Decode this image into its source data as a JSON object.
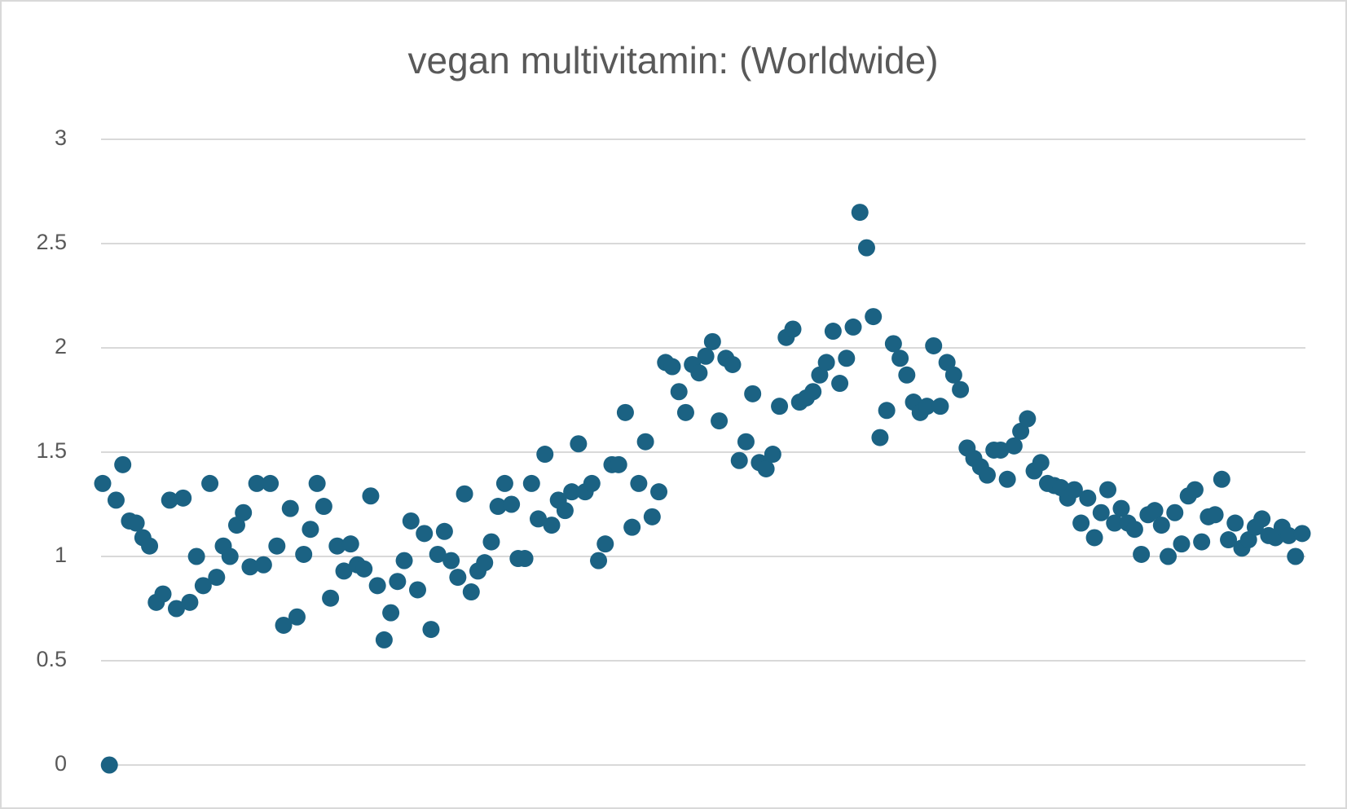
{
  "chart_data": {
    "type": "scatter",
    "title": "vegan multivitamin: (Worldwide)",
    "values": [
      1.35,
      0,
      1.27,
      1.44,
      1.17,
      1.16,
      1.09,
      1.05,
      0.78,
      0.82,
      1.27,
      0.75,
      1.28,
      0.78,
      1.0,
      0.86,
      1.35,
      0.9,
      1.05,
      1.0,
      1.15,
      1.21,
      0.95,
      1.35,
      0.96,
      1.35,
      1.05,
      0.67,
      1.23,
      0.71,
      1.01,
      1.13,
      1.35,
      1.24,
      0.8,
      1.05,
      0.93,
      1.06,
      0.96,
      0.94,
      1.29,
      0.86,
      0.6,
      0.73,
      0.88,
      0.98,
      1.17,
      0.84,
      1.11,
      0.65,
      1.01,
      1.12,
      0.98,
      0.9,
      1.3,
      0.83,
      0.93,
      0.97,
      1.07,
      1.24,
      1.35,
      1.25,
      0.99,
      0.99,
      1.35,
      1.18,
      1.49,
      1.15,
      1.27,
      1.22,
      1.31,
      1.54,
      1.31,
      1.35,
      0.98,
      1.06,
      1.44,
      1.44,
      1.69,
      1.14,
      1.35,
      1.55,
      1.19,
      1.31,
      1.93,
      1.91,
      1.79,
      1.69,
      1.92,
      1.88,
      1.96,
      2.03,
      1.65,
      1.95,
      1.92,
      1.46,
      1.55,
      1.78,
      1.45,
      1.42,
      1.49,
      1.72,
      2.05,
      2.09,
      1.74,
      1.76,
      1.79,
      1.87,
      1.93,
      2.08,
      1.83,
      1.95,
      2.1,
      2.65,
      2.48,
      2.15,
      1.57,
      1.7,
      2.02,
      1.95,
      1.87,
      1.74,
      1.69,
      1.72,
      2.01,
      1.72,
      1.93,
      1.87,
      1.8,
      1.52,
      1.47,
      1.43,
      1.39,
      1.51,
      1.51,
      1.37,
      1.53,
      1.6,
      1.66,
      1.41,
      1.45,
      1.35,
      1.34,
      1.33,
      1.28,
      1.32,
      1.16,
      1.28,
      1.09,
      1.21,
      1.32,
      1.16,
      1.23,
      1.16,
      1.13,
      1.01,
      1.2,
      1.22,
      1.15,
      1.0,
      1.21,
      1.06,
      1.29,
      1.32,
      1.07,
      1.19,
      1.2,
      1.37,
      1.08,
      1.16,
      1.04,
      1.08,
      1.14,
      1.18,
      1.1,
      1.09,
      1.14,
      1.1,
      1.0,
      1.11
    ],
    "color": "#1b6283",
    "ylim": [
      0,
      3
    ],
    "yticks": [
      0,
      0.5,
      1,
      1.5,
      2,
      2.5,
      3
    ],
    "grid": true
  }
}
